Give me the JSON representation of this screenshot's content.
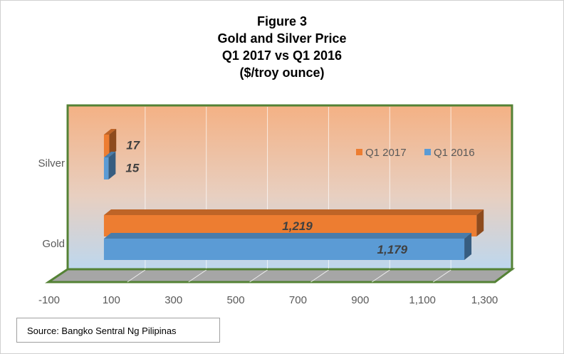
{
  "figure": {
    "title_lines": [
      "Figure 3",
      "Gold and Silver Price",
      "Q1 2017 vs Q1 2016",
      "($/troy ounce)"
    ],
    "source": "Source:  Bangko Sentral Ng Pilipinas"
  },
  "chart_data": {
    "type": "bar",
    "orientation": "horizontal",
    "categories": [
      "Gold",
      "Silver"
    ],
    "series": [
      {
        "name": "Q1 2016",
        "values": [
          1179,
          15
        ],
        "labels": [
          "1,179",
          "15"
        ],
        "color": "#5b9bd5"
      },
      {
        "name": "Q1 2017",
        "values": [
          1219,
          17
        ],
        "labels": [
          "1,219",
          "17"
        ],
        "color": "#ed7d31"
      }
    ],
    "xlim": [
      -100,
      1300
    ],
    "xticks": [
      -100,
      100,
      300,
      500,
      700,
      900,
      1100,
      1300
    ],
    "xtick_labels": [
      "-100",
      "100",
      "300",
      "500",
      "700",
      "900",
      "1,100",
      "1,300"
    ],
    "legend_order": [
      "Q1 2017",
      "Q1 2016"
    ],
    "legend_position": "right",
    "grid": true,
    "style": "3d",
    "plot_background": "gradient orange to light blue",
    "border_color": "#548235"
  }
}
